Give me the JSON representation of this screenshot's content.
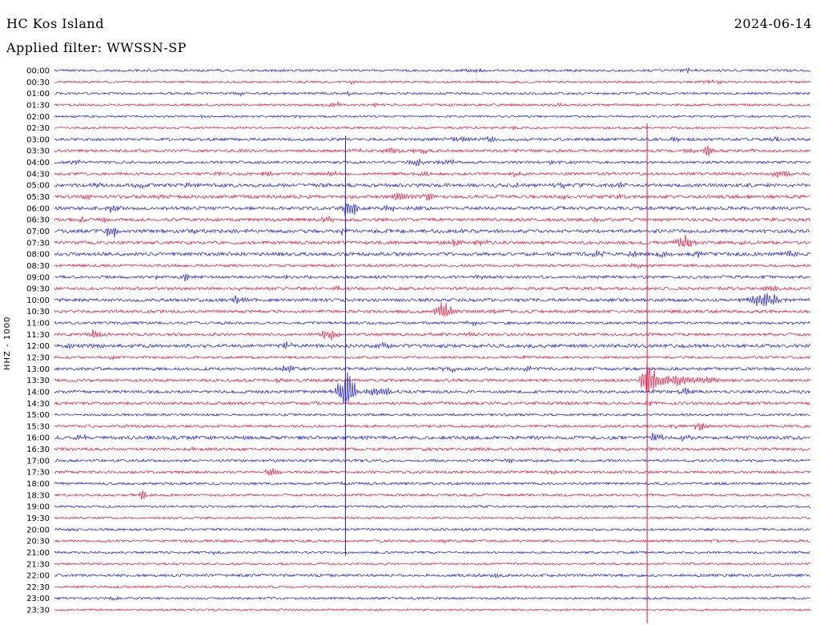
{
  "header": {
    "station": "HC Kos Island",
    "date": "2024-06-14",
    "filter_label": "Applied filter: WWSSN-SP"
  },
  "axis": {
    "channel_label": "HHZ - 1000"
  },
  "chart_data": {
    "type": "line",
    "subtype": "helicorder-seismogram",
    "title": "HC Kos Island",
    "date": "2024-06-14",
    "filter": "WWSSN-SP",
    "row_interval_minutes": 30,
    "colors": {
      "blue": "#1a1acd",
      "red": "#e6103c"
    },
    "clip_lines": [
      {
        "color": "blue",
        "x": 0.385,
        "from_row": 5.7,
        "to_row": 42.3
      },
      {
        "color": "red",
        "x": 0.784,
        "from_row": 4.6,
        "to_row": 48.3
      }
    ],
    "rows": [
      {
        "label": "00:00",
        "color": "blue",
        "noise": 1.4,
        "events": [
          [
            0.553,
            3,
            14
          ],
          [
            0.839,
            2.5,
            10
          ],
          [
            0.3,
            1.5,
            10
          ]
        ]
      },
      {
        "label": "00:30",
        "color": "red",
        "noise": 1.3,
        "events": [
          [
            0.394,
            3,
            8
          ],
          [
            0.871,
            2.5,
            12
          ]
        ]
      },
      {
        "label": "01:00",
        "color": "blue",
        "noise": 1.4,
        "events": [
          [
            0.389,
            3.5,
            8
          ],
          [
            0.246,
            2,
            8
          ]
        ]
      },
      {
        "label": "01:30",
        "color": "red",
        "noise": 1.4,
        "events": [
          [
            0.373,
            3,
            10
          ],
          [
            0.426,
            3,
            8
          ],
          [
            0.669,
            2,
            8
          ]
        ]
      },
      {
        "label": "02:00",
        "color": "blue",
        "noise": 1.3,
        "events": [
          [
            0.198,
            2,
            6
          ],
          [
            0.325,
            2,
            6
          ]
        ]
      },
      {
        "label": "02:30",
        "color": "red",
        "noise": 1.3,
        "events": [
          [
            0.129,
            2,
            6
          ],
          [
            0.606,
            2,
            6
          ]
        ]
      },
      {
        "label": "03:00",
        "color": "blue",
        "noise": 1.8,
        "events": [
          [
            0.537,
            4,
            16
          ],
          [
            0.574,
            4,
            12
          ],
          [
            0.616,
            3,
            10
          ],
          [
            0.823,
            3,
            10
          ],
          [
            0.95,
            3,
            8
          ]
        ]
      },
      {
        "label": "03:30",
        "color": "red",
        "noise": 1.7,
        "events": [
          [
            0.405,
            3,
            8
          ],
          [
            0.447,
            4,
            10
          ],
          [
            0.484,
            4,
            10
          ],
          [
            0.839,
            4,
            8
          ],
          [
            0.865,
            8,
            5
          ],
          [
            0.924,
            3,
            8
          ]
        ]
      },
      {
        "label": "04:00",
        "color": "blue",
        "noise": 1.7,
        "events": [
          [
            0.029,
            3,
            6
          ],
          [
            0.479,
            5,
            10
          ],
          [
            0.521,
            4,
            10
          ],
          [
            0.659,
            3,
            8
          ]
        ]
      },
      {
        "label": "04:30",
        "color": "red",
        "noise": 1.7,
        "events": [
          [
            0.214,
            3,
            8
          ],
          [
            0.283,
            3.5,
            8
          ],
          [
            0.368,
            3,
            8
          ],
          [
            0.489,
            3,
            8
          ],
          [
            0.611,
            3,
            8
          ],
          [
            0.961,
            5,
            18
          ]
        ]
      },
      {
        "label": "05:00",
        "color": "blue",
        "noise": 2.2,
        "events": [
          [
            0.055,
            4,
            10
          ],
          [
            0.113,
            3,
            8
          ],
          [
            0.172,
            3,
            8
          ],
          [
            0.611,
            4,
            10
          ],
          [
            0.669,
            3,
            8
          ],
          [
            0.749,
            4,
            10
          ]
        ]
      },
      {
        "label": "05:30",
        "color": "red",
        "noise": 2.1,
        "events": [
          [
            0.044,
            3,
            8
          ],
          [
            0.145,
            3,
            8
          ],
          [
            0.458,
            6,
            12
          ],
          [
            0.495,
            4,
            8
          ],
          [
            0.669,
            3,
            8
          ],
          [
            0.744,
            3,
            8
          ]
        ]
      },
      {
        "label": "06:00",
        "color": "blue",
        "noise": 2.0,
        "events": [
          [
            0.076,
            5,
            8
          ],
          [
            0.386,
            13,
            5
          ],
          [
            0.396,
            11,
            4
          ],
          [
            0.442,
            5,
            8
          ],
          [
            0.479,
            4,
            8
          ]
        ]
      },
      {
        "label": "06:30",
        "color": "red",
        "noise": 2.0,
        "events": [
          [
            0.034,
            4,
            8
          ],
          [
            0.066,
            4,
            8
          ],
          [
            0.362,
            6,
            8
          ],
          [
            0.717,
            3,
            8
          ]
        ]
      },
      {
        "label": "07:00",
        "color": "blue",
        "noise": 2.2,
        "events": [
          [
            0.076,
            8,
            9
          ],
          [
            0.187,
            3,
            8
          ],
          [
            0.383,
            4,
            6
          ]
        ]
      },
      {
        "label": "07:30",
        "color": "red",
        "noise": 2.0,
        "events": [
          [
            0.526,
            4,
            12
          ],
          [
            0.563,
            4,
            10
          ],
          [
            0.834,
            11,
            11
          ],
          [
            0.913,
            3,
            8
          ]
        ]
      },
      {
        "label": "08:00",
        "color": "blue",
        "noise": 2.2,
        "events": [
          [
            0.717,
            4,
            12
          ],
          [
            0.765,
            3,
            10
          ],
          [
            0.807,
            4,
            12
          ],
          [
            0.849,
            4,
            10
          ],
          [
            0.977,
            4,
            8
          ]
        ]
      },
      {
        "label": "08:30",
        "color": "red",
        "noise": 1.6,
        "events": [
          [
            0.77,
            2.5,
            8
          ]
        ]
      },
      {
        "label": "09:00",
        "color": "blue",
        "noise": 1.8,
        "events": [
          [
            0.135,
            4,
            6
          ],
          [
            0.174,
            7,
            4
          ],
          [
            0.304,
            3,
            8
          ],
          [
            0.563,
            3,
            8
          ]
        ]
      },
      {
        "label": "09:30",
        "color": "red",
        "noise": 1.8,
        "events": [
          [
            0.246,
            3,
            8
          ],
          [
            0.373,
            3,
            8
          ],
          [
            0.945,
            4,
            12
          ]
        ]
      },
      {
        "label": "10:00",
        "color": "blue",
        "noise": 2.0,
        "events": [
          [
            0.246,
            6,
            10
          ],
          [
            0.94,
            10,
            22
          ]
        ]
      },
      {
        "label": "10:30",
        "color": "red",
        "noise": 1.8,
        "events": [
          [
            0.516,
            11,
            13
          ],
          [
            0.585,
            3,
            8
          ]
        ]
      },
      {
        "label": "11:00",
        "color": "blue",
        "noise": 1.6,
        "events": [
          [
            0.553,
            3,
            10
          ]
        ]
      },
      {
        "label": "11:30",
        "color": "red",
        "noise": 1.8,
        "events": [
          [
            0.055,
            8,
            9
          ],
          [
            0.362,
            8,
            11
          ],
          [
            0.553,
            4,
            8
          ]
        ]
      },
      {
        "label": "12:00",
        "color": "blue",
        "noise": 2.2,
        "events": [
          [
            0.023,
            4,
            6
          ],
          [
            0.309,
            6,
            6
          ],
          [
            0.436,
            4,
            8
          ]
        ]
      },
      {
        "label": "12:30",
        "color": "red",
        "noise": 1.5,
        "events": [
          [
            0.076,
            2.5,
            6
          ],
          [
            0.627,
            2.5,
            8
          ]
        ]
      },
      {
        "label": "13:00",
        "color": "blue",
        "noise": 1.8,
        "events": [
          [
            0.309,
            5,
            10
          ],
          [
            0.521,
            4,
            10
          ],
          [
            0.627,
            3,
            8
          ]
        ]
      },
      {
        "label": "13:30",
        "color": "red",
        "noise": 1.8,
        "events": [
          [
            0.299,
            3,
            8
          ],
          [
            0.786,
            30,
            9
          ],
          [
            0.818,
            8,
            18
          ],
          [
            0.86,
            5,
            22
          ]
        ]
      },
      {
        "label": "14:00",
        "color": "blue",
        "noise": 1.8,
        "events": [
          [
            0.386,
            28,
            11
          ],
          [
            0.426,
            7,
            18
          ],
          [
            0.839,
            6,
            11
          ]
        ]
      },
      {
        "label": "14:30",
        "color": "red",
        "noise": 1.8,
        "events": [
          [
            0.394,
            3,
            8
          ],
          [
            0.786,
            4,
            8
          ]
        ]
      },
      {
        "label": "15:00",
        "color": "blue",
        "noise": 1.5,
        "events": [
          [
            0.606,
            2.5,
            8
          ]
        ]
      },
      {
        "label": "15:30",
        "color": "red",
        "noise": 1.6,
        "events": [
          [
            0.818,
            3,
            8
          ],
          [
            0.855,
            7,
            9
          ]
        ]
      },
      {
        "label": "16:00",
        "color": "blue",
        "noise": 2.2,
        "events": [
          [
            0.034,
            4,
            10
          ],
          [
            0.076,
            3,
            8
          ],
          [
            0.797,
            7,
            9
          ],
          [
            0.834,
            4,
            8
          ]
        ]
      },
      {
        "label": "16:30",
        "color": "red",
        "noise": 1.8,
        "events": [
          [
            0.182,
            2.5,
            8
          ],
          [
            0.669,
            2.5,
            8
          ]
        ]
      },
      {
        "label": "17:00",
        "color": "blue",
        "noise": 1.6,
        "events": [
          [
            0.601,
            4,
            5
          ]
        ]
      },
      {
        "label": "17:30",
        "color": "red",
        "noise": 1.6,
        "events": [
          [
            0.288,
            5,
            11
          ],
          [
            0.654,
            3,
            8
          ]
        ]
      },
      {
        "label": "18:00",
        "color": "blue",
        "noise": 1.5,
        "events": [
          [
            0.383,
            2.5,
            6
          ]
        ]
      },
      {
        "label": "18:30",
        "color": "red",
        "noise": 1.5,
        "events": [
          [
            0.117,
            8,
            4
          ]
        ]
      },
      {
        "label": "19:00",
        "color": "blue",
        "noise": 1.4,
        "events": []
      },
      {
        "label": "19:30",
        "color": "red",
        "noise": 1.3,
        "events": []
      },
      {
        "label": "20:00",
        "color": "blue",
        "noise": 1.5,
        "events": [
          [
            0.023,
            3,
            6
          ]
        ]
      },
      {
        "label": "20:30",
        "color": "red",
        "noise": 1.5,
        "events": [
          [
            0.23,
            3,
            8
          ],
          [
            0.278,
            3,
            8
          ],
          [
            0.516,
            3,
            8
          ]
        ]
      },
      {
        "label": "21:00",
        "color": "blue",
        "noise": 1.4,
        "events": [
          [
            0.214,
            2.5,
            6
          ]
        ]
      },
      {
        "label": "21:30",
        "color": "red",
        "noise": 1.3,
        "events": []
      },
      {
        "label": "22:00",
        "color": "blue",
        "noise": 1.7,
        "events": [
          [
            0.585,
            2.5,
            8
          ]
        ]
      },
      {
        "label": "22:30",
        "color": "red",
        "noise": 1.3,
        "events": []
      },
      {
        "label": "23:00",
        "color": "blue",
        "noise": 1.4,
        "events": [
          [
            0.082,
            3,
            6
          ]
        ]
      },
      {
        "label": "23:30",
        "color": "red",
        "noise": 1.3,
        "events": []
      }
    ]
  }
}
